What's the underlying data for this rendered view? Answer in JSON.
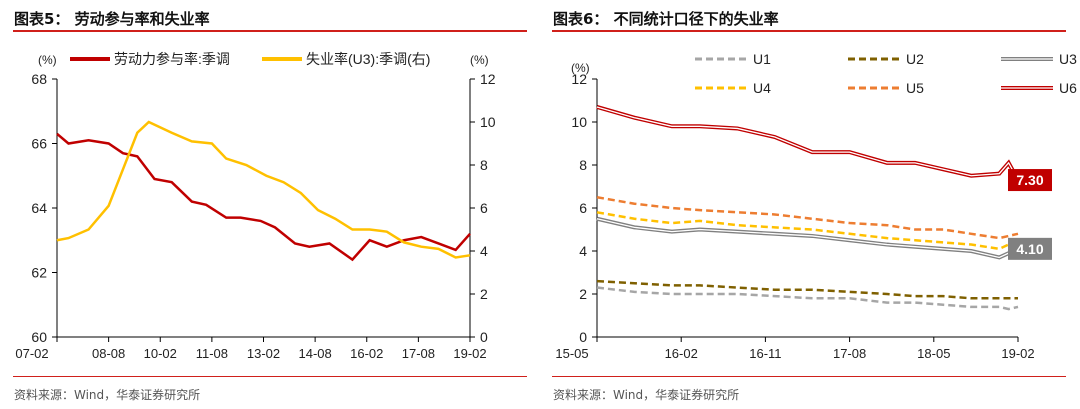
{
  "chart_data": [
    {
      "type": "line",
      "title": "图表5： 劳动参与率和失业率",
      "source": "资料来源：Wind，华泰证券研究所",
      "ylabel_left": "(%)",
      "ylabel_right": "(%)",
      "ylim_left": [
        60,
        68
      ],
      "ylim_right": [
        0,
        12
      ],
      "yticks_left": [
        "60",
        "62",
        "64",
        "66",
        "68"
      ],
      "yticks_right": [
        "0",
        "2",
        "4",
        "6",
        "8",
        "10",
        "12"
      ],
      "xticks": [
        "07-02",
        "08-08",
        "10-02",
        "11-08",
        "13-02",
        "14-08",
        "16-02",
        "17-08",
        "19-02"
      ],
      "legend": "top",
      "series": [
        {
          "name": "劳动力参与率:季调",
          "axis": "left",
          "color": "#c00000",
          "x": [
            "2007-02",
            "2007-06",
            "2008-01",
            "2008-08",
            "2009-01",
            "2009-06",
            "2009-12",
            "2010-06",
            "2011-01",
            "2011-06",
            "2012-01",
            "2012-06",
            "2013-01",
            "2013-06",
            "2014-01",
            "2014-06",
            "2015-01",
            "2015-09",
            "2016-03",
            "2016-09",
            "2017-03",
            "2017-09",
            "2018-03",
            "2018-09",
            "2019-02"
          ],
          "values": [
            66.3,
            66.0,
            66.1,
            66.0,
            65.7,
            65.6,
            64.9,
            64.8,
            64.2,
            64.1,
            63.7,
            63.7,
            63.6,
            63.4,
            62.9,
            62.8,
            62.9,
            62.4,
            63.0,
            62.8,
            63.0,
            63.1,
            62.9,
            62.7,
            63.2
          ]
        },
        {
          "name": "失业率(U3):季调(右)",
          "axis": "right",
          "color": "#ffc000",
          "x": [
            "2007-02",
            "2007-06",
            "2008-01",
            "2008-08",
            "2009-01",
            "2009-06",
            "2009-10",
            "2010-06",
            "2011-01",
            "2011-08",
            "2012-01",
            "2012-08",
            "2013-03",
            "2013-09",
            "2014-03",
            "2014-09",
            "2015-03",
            "2015-09",
            "2016-03",
            "2016-09",
            "2017-03",
            "2017-09",
            "2018-03",
            "2018-09",
            "2019-02"
          ],
          "values": [
            4.5,
            4.6,
            5.0,
            6.1,
            7.8,
            9.5,
            10.0,
            9.5,
            9.1,
            9.0,
            8.3,
            8.0,
            7.5,
            7.2,
            6.7,
            5.9,
            5.5,
            5.0,
            5.0,
            4.9,
            4.4,
            4.2,
            4.1,
            3.7,
            3.8
          ]
        }
      ]
    },
    {
      "type": "line",
      "title": "图表6： 不同统计口径下的失业率",
      "source": "资料来源：Wind，华泰证券研究所",
      "ylabel": "(%)",
      "ylim": [
        0,
        12
      ],
      "yticks": [
        "0",
        "2",
        "4",
        "6",
        "8",
        "10",
        "12"
      ],
      "xticks": [
        "15-05",
        "16-02",
        "16-11",
        "17-08",
        "18-05",
        "19-02"
      ],
      "legend": "top",
      "x": [
        "2015-05",
        "2015-09",
        "2016-01",
        "2016-04",
        "2016-08",
        "2016-12",
        "2017-04",
        "2017-08",
        "2017-12",
        "2018-03",
        "2018-06",
        "2018-09",
        "2018-12",
        "2019-01",
        "2019-02"
      ],
      "series": [
        {
          "name": "U1",
          "color": "#a6a6a6",
          "style": "dashed",
          "values": [
            2.3,
            2.1,
            2.0,
            2.0,
            2.0,
            1.9,
            1.8,
            1.8,
            1.6,
            1.6,
            1.5,
            1.4,
            1.4,
            1.3,
            1.4
          ]
        },
        {
          "name": "U2",
          "color": "#7f6000",
          "style": "dashed",
          "values": [
            2.6,
            2.5,
            2.4,
            2.4,
            2.3,
            2.2,
            2.2,
            2.1,
            2.0,
            1.9,
            1.9,
            1.8,
            1.8,
            1.8,
            1.8
          ]
        },
        {
          "name": "U3",
          "color": "#808080",
          "style": "double",
          "values": [
            5.5,
            5.1,
            4.9,
            5.0,
            4.9,
            4.8,
            4.7,
            4.5,
            4.3,
            4.2,
            4.1,
            4.0,
            3.7,
            3.9,
            4.1
          ]
        },
        {
          "name": "U4",
          "color": "#ffc000",
          "style": "dashed",
          "values": [
            5.8,
            5.5,
            5.3,
            5.4,
            5.2,
            5.1,
            5.0,
            4.8,
            4.6,
            4.5,
            4.4,
            4.3,
            4.1,
            4.3,
            4.3
          ]
        },
        {
          "name": "U5",
          "color": "#ed7d31",
          "style": "dashed",
          "values": [
            6.5,
            6.2,
            6.0,
            5.9,
            5.8,
            5.7,
            5.5,
            5.3,
            5.2,
            5.0,
            5.0,
            4.8,
            4.6,
            4.7,
            4.8
          ]
        },
        {
          "name": "U6",
          "color": "#c00000",
          "style": "double",
          "values": [
            10.7,
            10.2,
            9.8,
            9.8,
            9.7,
            9.3,
            8.6,
            8.6,
            8.1,
            8.1,
            7.8,
            7.5,
            7.6,
            8.1,
            7.3
          ]
        }
      ],
      "annotations": [
        {
          "text": "7.30",
          "series": "U6",
          "color": "#c00000"
        },
        {
          "text": "4.10",
          "series": "U3",
          "color": "#808080"
        }
      ]
    }
  ]
}
